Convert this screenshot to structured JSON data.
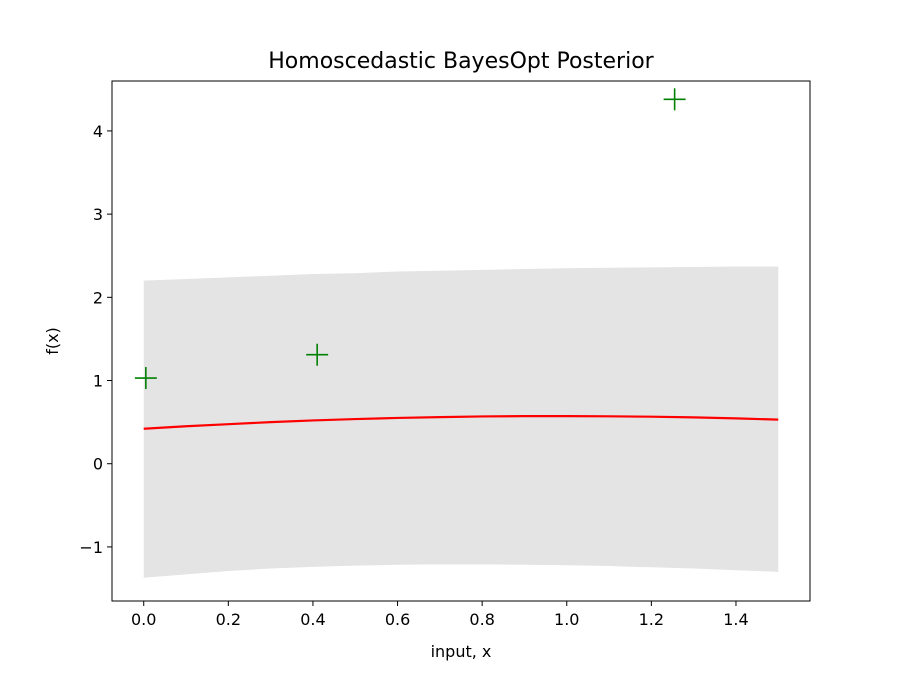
{
  "chart_data": {
    "type": "line",
    "title": "Homoscedastic BayesOpt Posterior",
    "xlabel": "input, x",
    "ylabel": "f(x)",
    "xlim": [
      -0.075,
      1.575
    ],
    "ylim": [
      -1.65,
      4.6
    ],
    "grid": false,
    "legend": "none",
    "x_ticks": [
      0.0,
      0.2,
      0.4,
      0.6,
      0.8,
      1.0,
      1.2,
      1.4
    ],
    "x_tick_labels": [
      "0.0",
      "0.2",
      "0.4",
      "0.6",
      "0.8",
      "1.0",
      "1.2",
      "1.4"
    ],
    "y_ticks": [
      -1,
      0,
      1,
      2,
      3,
      4
    ],
    "y_tick_labels": [
      "−1",
      "0",
      "1",
      "2",
      "3",
      "4"
    ],
    "series": [
      {
        "kind": "mean",
        "style": "line",
        "color": "#ff0000",
        "x": [
          0.0,
          0.1,
          0.2,
          0.3,
          0.4,
          0.5,
          0.6,
          0.7,
          0.8,
          0.9,
          1.0,
          1.1,
          1.2,
          1.3,
          1.4,
          1.5
        ],
        "y": [
          0.42,
          0.45,
          0.475,
          0.5,
          0.52,
          0.537,
          0.55,
          0.56,
          0.568,
          0.572,
          0.572,
          0.57,
          0.565,
          0.557,
          0.545,
          0.53
        ]
      },
      {
        "kind": "confidence-band",
        "style": "fill",
        "color": "#e4e4e4",
        "x": [
          0.0,
          0.1,
          0.2,
          0.3,
          0.4,
          0.5,
          0.6,
          0.7,
          0.8,
          0.9,
          1.0,
          1.1,
          1.2,
          1.3,
          1.4,
          1.5
        ],
        "upper": [
          2.2,
          2.22,
          2.24,
          2.26,
          2.28,
          2.29,
          2.31,
          2.32,
          2.33,
          2.34,
          2.35,
          2.355,
          2.36,
          2.365,
          2.37,
          2.37
        ],
        "lower": [
          -1.37,
          -1.33,
          -1.29,
          -1.26,
          -1.24,
          -1.225,
          -1.215,
          -1.21,
          -1.21,
          -1.215,
          -1.22,
          -1.23,
          -1.245,
          -1.26,
          -1.28,
          -1.3
        ]
      },
      {
        "kind": "observations",
        "style": "marker-plus",
        "color": "#008000",
        "points": [
          {
            "x": 0.005,
            "y": 1.03
          },
          {
            "x": 0.41,
            "y": 1.31
          },
          {
            "x": 1.255,
            "y": 4.38
          }
        ]
      }
    ]
  }
}
